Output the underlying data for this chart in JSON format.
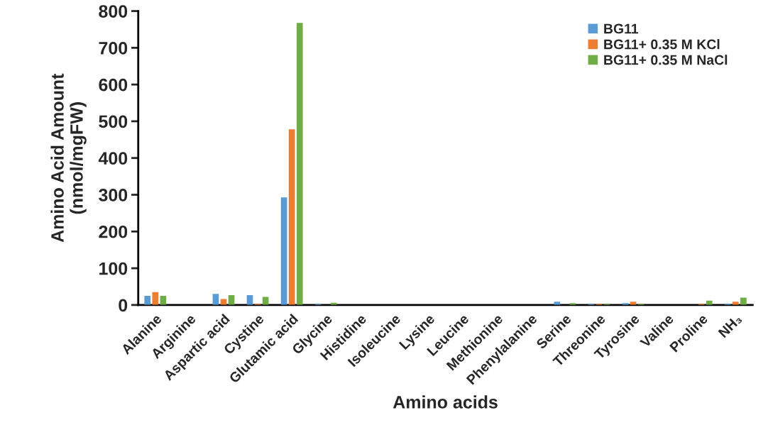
{
  "chart_data": {
    "type": "bar",
    "xlabel": "Amino acids",
    "ylabel": "Amino Acid Amount\n(nmol/mgFW)",
    "categories": [
      "Alanine",
      "Arginine",
      "Aspartic acid",
      "Cystine",
      "Glutamic acid",
      "Glycine",
      "Histidine",
      "Isoleucine",
      "Lysine",
      "Leucine",
      "Methionine",
      "Phenylalanine",
      "Serine",
      "Threonine",
      "Tyrosine",
      "Valine",
      "Proline",
      "NH₃"
    ],
    "series": [
      {
        "name": "BG11",
        "color": "#5b9bd5",
        "values": [
          25,
          null,
          30,
          27,
          293,
          3,
          null,
          null,
          null,
          null,
          null,
          null,
          9,
          3,
          5,
          null,
          null,
          3
        ]
      },
      {
        "name": "BG11+ 0.35 M KCl",
        "color": "#ed7d31",
        "values": [
          35,
          null,
          16,
          3,
          478,
          null,
          null,
          null,
          null,
          null,
          null,
          null,
          null,
          3,
          9,
          null,
          3,
          9
        ]
      },
      {
        "name": "BG11+ 0.35 M NaCl",
        "color": "#70ad47",
        "values": [
          25,
          null,
          27,
          22,
          768,
          6,
          null,
          null,
          null,
          null,
          null,
          null,
          5,
          3,
          3,
          null,
          12,
          20
        ]
      }
    ],
    "ylim": [
      0,
      800
    ],
    "yticks": [
      0,
      100,
      200,
      300,
      400,
      500,
      600,
      700,
      800
    ],
    "grid": false,
    "legend": "top right"
  }
}
